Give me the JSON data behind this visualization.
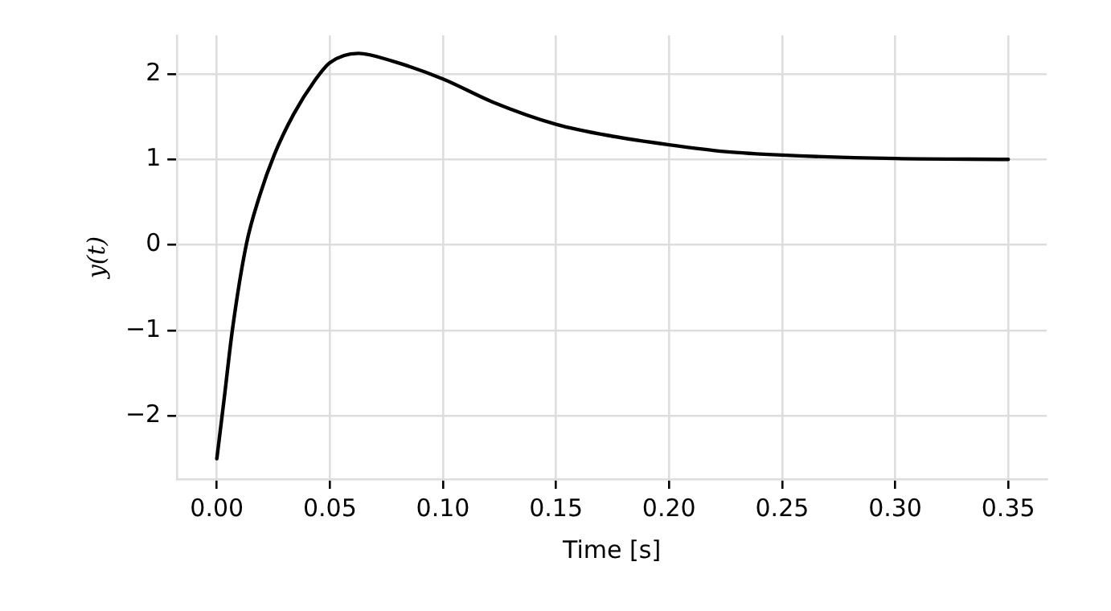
{
  "chart_data": {
    "type": "line",
    "xlabel": "Time [s]",
    "ylabel": "y(t)",
    "x": [
      0,
      0.0032,
      0.0069,
      0.013,
      0.019,
      0.0255,
      0.034,
      0.043,
      0.05,
      0.0626,
      0.0775,
      0.1,
      0.122,
      0.15,
      0.175,
      0.2,
      0.225,
      0.25,
      0.3,
      0.35
    ],
    "series": [
      {
        "color": "#000000",
        "values": [
          -2.5,
          -1.81,
          -0.99,
          0,
          0.58,
          1.06,
          1.53,
          1.91,
          2.13,
          2.24,
          2.15,
          1.94,
          1.67,
          1.41,
          1.27,
          1.17,
          1.09,
          1.05,
          1.01,
          1.0
        ]
      }
    ],
    "xlim": [
      -0.0176,
      0.367
    ],
    "ylim": [
      -2.74,
      2.45
    ],
    "xticks": [
      {
        "value": 0,
        "label": "0.00"
      },
      {
        "value": 0.05,
        "label": "0.05"
      },
      {
        "value": 0.1,
        "label": "0.10"
      },
      {
        "value": 0.15,
        "label": "0.15"
      },
      {
        "value": 0.2,
        "label": "0.20"
      },
      {
        "value": 0.25,
        "label": "0.25"
      },
      {
        "value": 0.3,
        "label": "0.30"
      },
      {
        "value": 0.35,
        "label": "0.35"
      }
    ],
    "yticks": [
      {
        "value": -2,
        "label": "−2"
      },
      {
        "value": -1,
        "label": "−1"
      },
      0,
      1,
      2
    ],
    "grid": true,
    "legend": false,
    "marker": "none",
    "line_style": "solid"
  }
}
